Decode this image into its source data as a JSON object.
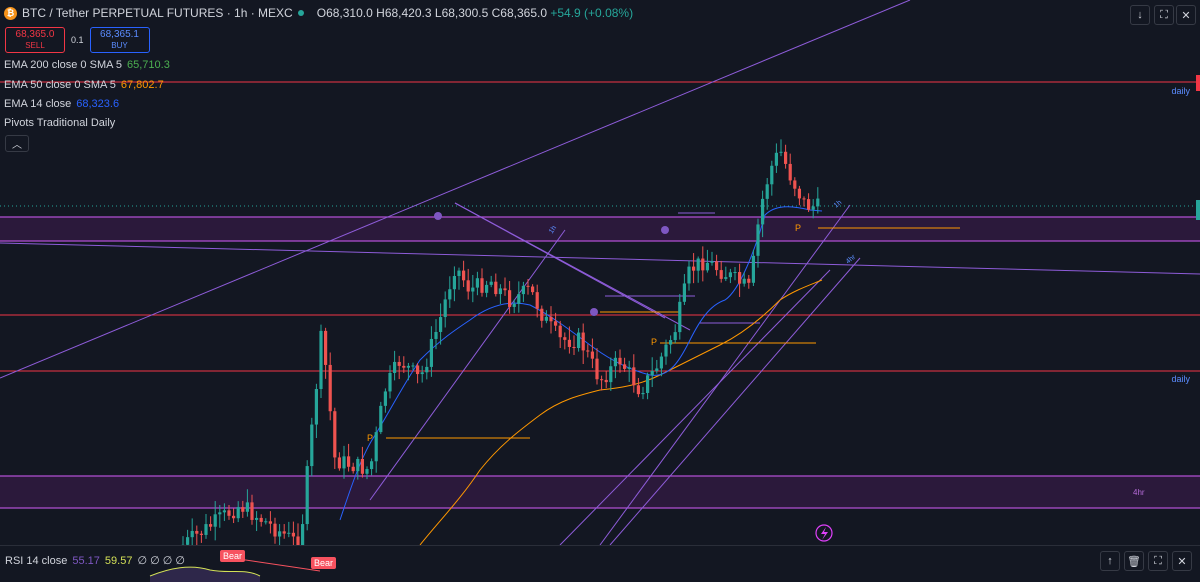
{
  "header": {
    "symbol_title": "BTC / Tether PERPETUAL FUTURES · 1h · MEXC",
    "ohlc": {
      "open_label": "O",
      "open": "68,310.0",
      "high_label": "H",
      "high": "68,420.3",
      "low_label": "L",
      "low": "68,300.5",
      "close_label": "C",
      "close": "68,365.0",
      "change": "+54.9 (+0.08%)"
    },
    "icon": "bitcoin-icon"
  },
  "trade": {
    "sell_price": "68,365.0",
    "sell_label": "SELL",
    "quantity": "0.1",
    "buy_price": "68,365.1",
    "buy_label": "BUY"
  },
  "indicators": [
    {
      "name": "EMA 200 close 0 SMA 5",
      "value": "65,710.3",
      "color": "#4caf50"
    },
    {
      "name": "EMA 50 close 0 SMA 5",
      "value": "67,802.7",
      "color": "#ff9800"
    },
    {
      "name": "EMA 14 close",
      "value": "68,323.6",
      "color": "#2962ff"
    },
    {
      "name": "Pivots Traditional Daily",
      "value": "",
      "color": "#d1d4dc"
    }
  ],
  "labels": {
    "daily_top": "daily",
    "daily_mid": "daily",
    "fourhr": "4hr",
    "pivot": "P",
    "bear": "Bear",
    "trendline_a": "1h",
    "trendline_b": "4hr",
    "trendline_c": "1h"
  },
  "rsi": {
    "name": "RSI 14 close",
    "value1": "55.17",
    "value2": "59.57",
    "rest": "∅ ∅ ∅ ∅"
  },
  "colors": {
    "background": "#131722",
    "up": "#26a69a",
    "down": "#ef5350",
    "zone": "#9c27b0",
    "horizontal": "#f23645"
  },
  "toolbar": {
    "top_right": [
      "down-arrow-icon",
      "maximize-icon",
      "close-icon"
    ],
    "rsi": [
      "up-arrow-icon",
      "trash-icon",
      "maximize-icon",
      "close-icon"
    ]
  },
  "chart_data": {
    "type": "candlestick",
    "ohlc_last": {
      "open": 68310.0,
      "high": 68420.3,
      "low": 68300.5,
      "close": 68365.0
    },
    "ema200": 65710.3,
    "ema50": 67802.7,
    "ema14": 68323.6
  }
}
